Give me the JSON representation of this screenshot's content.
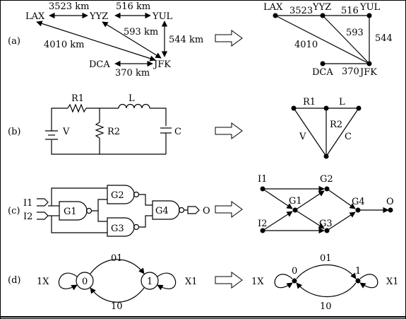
{
  "rows": {
    "a": {
      "tag": "(a)",
      "map": {
        "cities": {
          "lax": "LAX",
          "yyz": "YYZ",
          "yul": "YUL",
          "dca": "DCA",
          "jfk": "JFK"
        },
        "distances": {
          "lax_yyz": "3523 km",
          "yyz_yul": "516 km",
          "yyz_jfk": "593 km",
          "yul_jfk": "544 km",
          "lax_jfk": "4010 km",
          "dca_jfk": "370 km"
        }
      },
      "graph": {
        "nodes": {
          "lax": "LAX",
          "yyz": "YYZ",
          "yul": "YUL",
          "dca": "DCA",
          "jfk": "JFK"
        },
        "weights": {
          "lax_yyz": "3523",
          "yyz_yul": "516",
          "yyz_jfk": "593",
          "yul_jfk": "544",
          "lax_jfk": "4010",
          "dca_jfk": "370"
        }
      }
    },
    "b": {
      "tag": "(b)",
      "circuit": {
        "r1": "R1",
        "l": "L",
        "v": "V",
        "r2": "R2",
        "c": "C"
      },
      "graph": {
        "r1": "R1",
        "l": "L",
        "v": "V",
        "r2": "R2",
        "c": "C"
      }
    },
    "c": {
      "tag": "(c)",
      "circuit": {
        "i1": "I1",
        "i2": "I2",
        "g1": "G1",
        "g2": "G2",
        "g3": "G3",
        "g4": "G4",
        "o": "O"
      },
      "graph": {
        "i1": "I1",
        "i2": "I2",
        "g1": "G1",
        "g2": "G2",
        "g3": "G3",
        "g4": "G4",
        "o": "O"
      }
    },
    "d": {
      "tag": "(d)",
      "machine": {
        "s0": "0",
        "s1": "1",
        "t01": "01",
        "t10": "10",
        "l1x": "1X",
        "rx1": "X1"
      },
      "graph": {
        "s0": "0",
        "s1": "1",
        "t01": "01",
        "t10": "10",
        "l1x": "1X",
        "rx1": "X1"
      }
    }
  }
}
